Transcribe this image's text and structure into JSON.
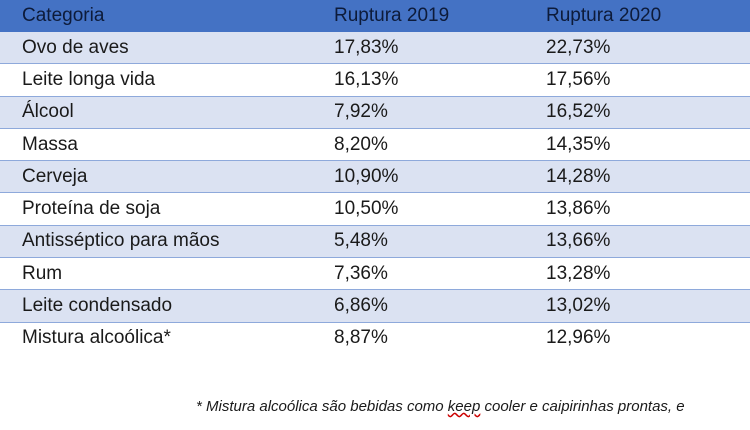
{
  "table": {
    "headers": [
      "Categoria",
      "Ruptura 2019",
      "Ruptura 2020"
    ],
    "rows": [
      [
        "Ovo de aves",
        "17,83%",
        "22,73%"
      ],
      [
        "Leite longa vida",
        "16,13%",
        "17,56%"
      ],
      [
        "Álcool",
        "7,92%",
        "16,52%"
      ],
      [
        "Massa",
        "8,20%",
        "14,35%"
      ],
      [
        "Cerveja",
        "10,90%",
        "14,28%"
      ],
      [
        "Proteína de soja",
        "10,50%",
        "13,86%"
      ],
      [
        "Antisséptico para mãos",
        "5,48%",
        "13,66%"
      ],
      [
        "Rum",
        "7,36%",
        "13,28%"
      ],
      [
        "Leite condensado",
        "6,86%",
        "13,02%"
      ],
      [
        "Mistura alcoólica*",
        "8,87%",
        "12,96%"
      ]
    ]
  },
  "footnote": {
    "prefix": "* Mistura alcoólica são bebidas como ",
    "flagged_word": "keep",
    "suffix": " cooler e caipirinhas prontas, e"
  }
}
